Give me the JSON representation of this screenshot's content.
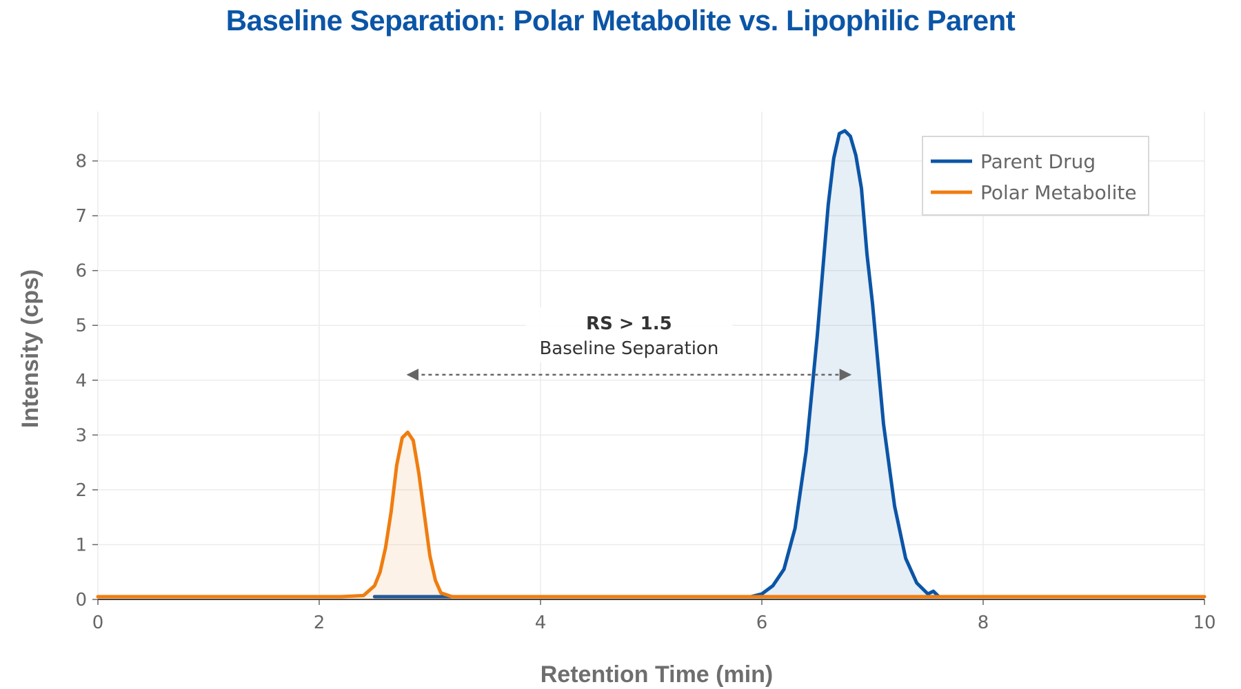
{
  "chart_data": {
    "type": "line",
    "title": "Baseline Separation: Polar Metabolite vs. Lipophilic Parent",
    "xlabel": "Retention Time (min)",
    "ylabel": "Intensity (cps)",
    "xlim": [
      0,
      10
    ],
    "ylim": [
      0,
      8.9
    ],
    "xticks": [
      0,
      2,
      4,
      6,
      8,
      10
    ],
    "yticks": [
      0,
      1,
      2,
      3,
      4,
      5,
      6,
      7,
      8
    ],
    "grid": true,
    "legend_position": "top-right",
    "series": [
      {
        "name": "Parent Drug",
        "color": "#0b55a6",
        "fill": true,
        "x": [
          2.5,
          2.6,
          2.8,
          3.0,
          3.1,
          5.9,
          6.0,
          6.1,
          6.2,
          6.3,
          6.4,
          6.5,
          6.55,
          6.6,
          6.65,
          6.7,
          6.75,
          6.8,
          6.85,
          6.9,
          6.95,
          7.0,
          7.1,
          7.2,
          7.3,
          7.4,
          7.5,
          7.55,
          7.6
        ],
        "y": [
          0.05,
          0.05,
          0.05,
          0.05,
          0.05,
          0.05,
          0.1,
          0.25,
          0.55,
          1.3,
          2.7,
          4.8,
          6.0,
          7.2,
          8.05,
          8.5,
          8.55,
          8.45,
          8.1,
          7.5,
          6.3,
          5.4,
          3.2,
          1.7,
          0.75,
          0.3,
          0.1,
          0.15,
          0.05
        ]
      },
      {
        "name": "Polar Metabolite",
        "color": "#ef7d10",
        "fill": true,
        "x": [
          0.0,
          0.5,
          1.0,
          1.5,
          2.0,
          2.2,
          2.4,
          2.5,
          2.55,
          2.6,
          2.65,
          2.7,
          2.75,
          2.8,
          2.85,
          2.9,
          2.95,
          3.0,
          3.05,
          3.1,
          3.2,
          3.5,
          4.0,
          5.0,
          6.0,
          7.0,
          8.0,
          9.0,
          9.5,
          10.0
        ],
        "y": [
          0.05,
          0.05,
          0.05,
          0.05,
          0.05,
          0.05,
          0.07,
          0.25,
          0.5,
          0.95,
          1.6,
          2.45,
          2.95,
          3.05,
          2.9,
          2.3,
          1.55,
          0.8,
          0.35,
          0.12,
          0.05,
          0.05,
          0.05,
          0.05,
          0.05,
          0.05,
          0.05,
          0.05,
          0.05,
          0.05
        ]
      }
    ],
    "annotation": {
      "title": "RS > 1.5",
      "subtitle": "Baseline Separation",
      "arrow_from_x": 2.8,
      "arrow_to_x": 6.8,
      "arrow_y": 4.1
    }
  }
}
